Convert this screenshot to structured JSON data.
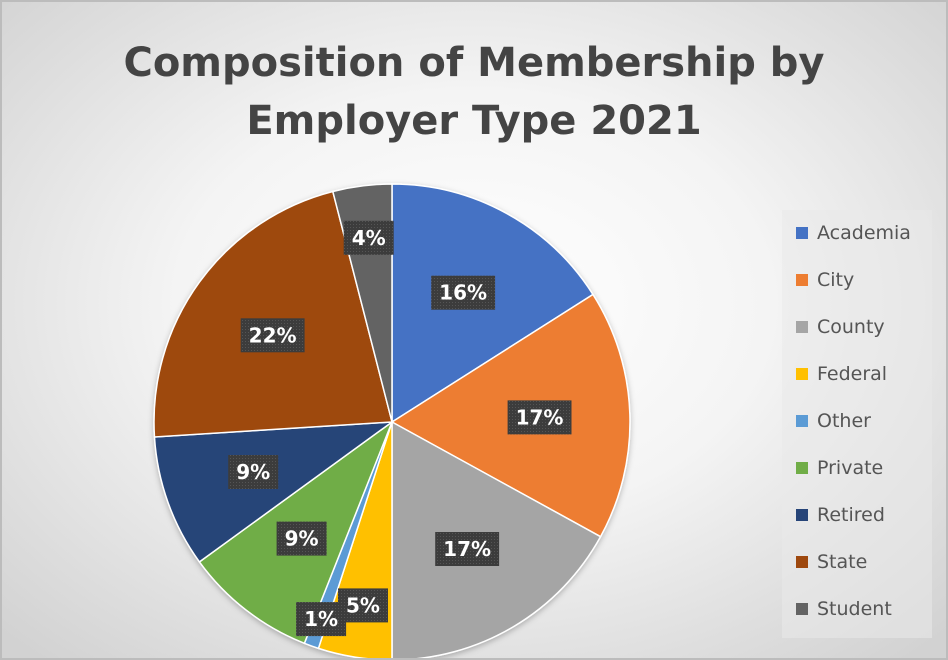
{
  "chart_data": {
    "type": "pie",
    "title_lines": [
      "Composition of Membership by",
      "Employer Type 2021"
    ],
    "start_angle_deg": 0,
    "direction": "clockwise",
    "legend_position": "right",
    "slices": [
      {
        "category": "Academia",
        "value": 16,
        "label": "16%",
        "color": "#4472C4"
      },
      {
        "category": "City",
        "value": 17,
        "label": "17%",
        "color": "#ED7D31"
      },
      {
        "category": "County",
        "value": 17,
        "label": "17%",
        "color": "#A5A5A5"
      },
      {
        "category": "Federal",
        "value": 5,
        "label": "5%",
        "color": "#FFC000"
      },
      {
        "category": "Other",
        "value": 1,
        "label": "1%",
        "color": "#5B9BD5"
      },
      {
        "category": "Private",
        "value": 9,
        "label": "9%",
        "color": "#70AD47"
      },
      {
        "category": "Retired",
        "value": 9,
        "label": "9%",
        "color": "#264478"
      },
      {
        "category": "State",
        "value": 22,
        "label": "22%",
        "color": "#9E480E"
      },
      {
        "category": "Student",
        "value": 4,
        "label": "4%",
        "color": "#636363"
      }
    ]
  }
}
